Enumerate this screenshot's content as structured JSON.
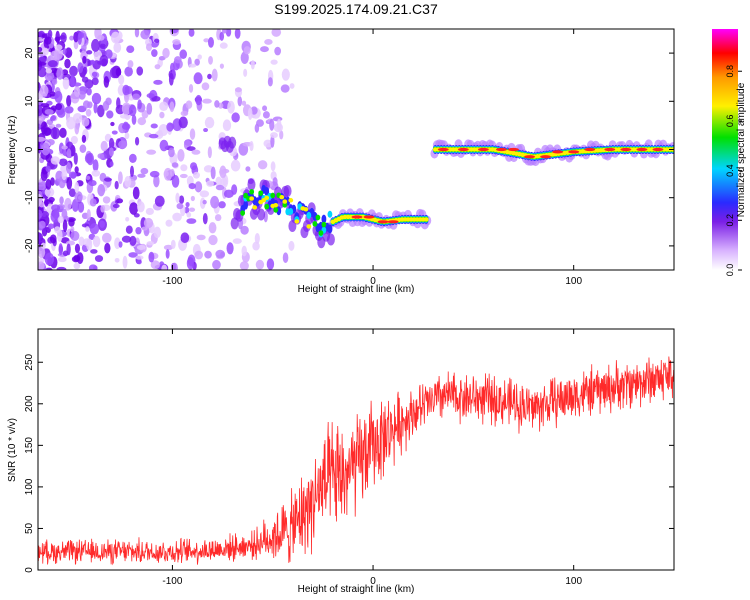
{
  "title": "S199.2025.174.09.21.C37",
  "chart_data": [
    {
      "type": "heatmap",
      "xlabel": "Height of straight line (km)",
      "ylabel": "Frequency (Hz)",
      "xlim": [
        -167,
        150
      ],
      "ylim": [
        -25,
        25
      ],
      "x_ticks": [
        -100,
        0,
        100
      ],
      "y_ticks": [
        -20,
        -10,
        0,
        10,
        20
      ],
      "colorbar": {
        "label": "Normalized spectral amplitude",
        "range": [
          0.0,
          0.97
        ],
        "ticks": [
          0.0,
          0.2,
          0.4,
          0.6,
          0.8
        ],
        "colors": [
          "#ffffff",
          "#d9b3ff",
          "#7b1fe6",
          "#2a2aff",
          "#00d5ff",
          "#00e000",
          "#fff000",
          "#ff9900",
          "#ff0000",
          "#ff00ff"
        ]
      },
      "ridge": [
        {
          "x": -70,
          "y": -12
        },
        {
          "x": -55,
          "y": -10
        },
        {
          "x": -45,
          "y": -11
        },
        {
          "x": -35,
          "y": -14
        },
        {
          "x": -25,
          "y": -16
        },
        {
          "x": -15,
          "y": -14
        },
        {
          "x": -5,
          "y": -14
        },
        {
          "x": 5,
          "y": -15
        },
        {
          "x": 15,
          "y": -14.5
        },
        {
          "x": 28,
          "y": -14.5
        },
        {
          "x": 30,
          "y": 0
        },
        {
          "x": 60,
          "y": 0
        },
        {
          "x": 80,
          "y": -1.5
        },
        {
          "x": 100,
          "y": -0.5
        },
        {
          "x": 120,
          "y": 0
        },
        {
          "x": 150,
          "y": 0
        }
      ],
      "noise_region": {
        "x_from": -167,
        "x_to": -50,
        "y_from": -25,
        "y_to": 25
      }
    },
    {
      "type": "line",
      "xlabel": "Height of straight line (km)",
      "ylabel": "SNR (10 * v/v)",
      "xlim": [
        -167,
        150
      ],
      "ylim": [
        0,
        290
      ],
      "x_ticks": [
        -100,
        0,
        100
      ],
      "y_ticks": [
        0,
        50,
        100,
        150,
        200,
        250
      ],
      "line_color": "#ff2a2a",
      "trend": [
        {
          "x": -167,
          "y": 22
        },
        {
          "x": -100,
          "y": 22
        },
        {
          "x": -80,
          "y": 24
        },
        {
          "x": -60,
          "y": 30
        },
        {
          "x": -40,
          "y": 50
        },
        {
          "x": -25,
          "y": 100
        },
        {
          "x": -10,
          "y": 120
        },
        {
          "x": 0,
          "y": 150
        },
        {
          "x": 20,
          "y": 190
        },
        {
          "x": 35,
          "y": 210
        },
        {
          "x": 60,
          "y": 205
        },
        {
          "x": 80,
          "y": 195
        },
        {
          "x": 100,
          "y": 210
        },
        {
          "x": 130,
          "y": 225
        },
        {
          "x": 150,
          "y": 235
        }
      ],
      "noise_amplitude": [
        {
          "x": -167,
          "a": 14
        },
        {
          "x": -60,
          "a": 16
        },
        {
          "x": -40,
          "a": 45
        },
        {
          "x": -20,
          "a": 70
        },
        {
          "x": 0,
          "a": 55
        },
        {
          "x": 20,
          "a": 30
        },
        {
          "x": 150,
          "a": 30
        }
      ]
    }
  ]
}
